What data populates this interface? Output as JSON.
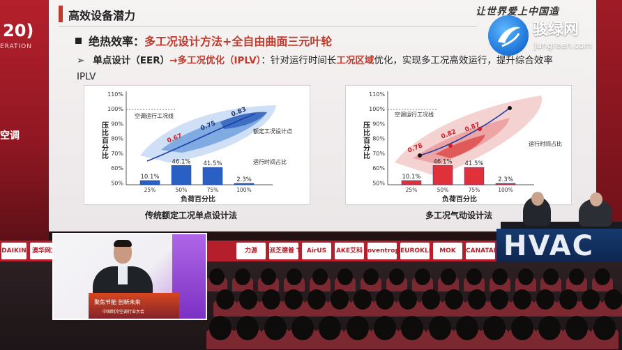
{
  "slide": {
    "title": "高效设备潜力",
    "slogan": "让世界爱上中国造",
    "bullet1_prefix": "绝热效率：",
    "bullet1_highlight": "多工况设计方法+全自由曲面三元叶轮",
    "bullet2_arrow": "➢",
    "bullet2_part1": "单点设计（EER）",
    "bullet2_part2": "→多工况优化（IPLV）",
    "bullet2_part3": "：针对运行时间长",
    "bullet2_highlight": "工况区域",
    "bullet2_part4": "优化，实现多工况高效运行，提升综合效率IPLV"
  },
  "watermark": {
    "name": "骏绿网",
    "url": "Jungreen.com"
  },
  "stage": {
    "wall_year": "20)",
    "wall_sub": "ERATION",
    "wall_brand": "空调"
  },
  "sponsors": [
    "DAIKIN",
    "澳华网方",
    "力源",
    "派芝德普 TANGENT",
    "AirUS",
    "AKE艾科",
    "oventrop",
    "EUROKLIMAT",
    "MOK",
    "CANATAL"
  ],
  "hvac_text": "HVAC",
  "inset": {
    "podium_line1": "聚焦节能 创新未来",
    "podium_line2": "中国制冷空调行业大会"
  },
  "chart_data": [
    {
      "type": "bar",
      "title": "传统额定工况单点设计法",
      "ylabel": "压比百分比",
      "xlabel": "负荷百分比",
      "y_ticks": [
        "110%",
        "100%",
        "90%",
        "80%",
        "70%",
        "60%",
        "50%"
      ],
      "categories": [
        "25%",
        "50%",
        "75%",
        "100%"
      ],
      "values": [
        10.1,
        46.1,
        41.5,
        2.3
      ],
      "value_labels": [
        "10.1%",
        "46.1%",
        "41.5%",
        "2.3%"
      ],
      "bar_color": "#2a5fc4",
      "contour_labels": [
        "0.67",
        "0.75",
        "0.83"
      ],
      "annotations": [
        "空调运行工况线",
        "额定工况设计点",
        "运行时间占比"
      ]
    },
    {
      "type": "bar",
      "title": "多工况气动设计法",
      "ylabel": "压比百分比",
      "xlabel": "负荷百分比",
      "y_ticks": [
        "110%",
        "100%",
        "90%",
        "80%",
        "70%",
        "60%",
        "50%"
      ],
      "categories": [
        "25%",
        "50%",
        "75%",
        "100%"
      ],
      "values": [
        10.1,
        46.1,
        41.5,
        2.3
      ],
      "value_labels": [
        "10.1%",
        "46.1%",
        "41.5%",
        "2.3%"
      ],
      "bar_color": "#e0303a",
      "contour_labels": [
        "0.78",
        "0.82",
        "0.87"
      ],
      "annotations": [
        "空调运行工况线",
        "运行时间占比"
      ]
    }
  ]
}
